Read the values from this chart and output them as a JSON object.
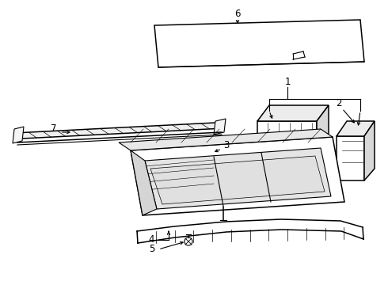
{
  "bg_color": "#ffffff",
  "line_color": "#000000",
  "lw": 0.8,
  "lw2": 1.1,
  "label_fontsize": 8.5,
  "labels": [
    "1",
    "2",
    "3",
    "4",
    "5",
    "6",
    "7"
  ]
}
